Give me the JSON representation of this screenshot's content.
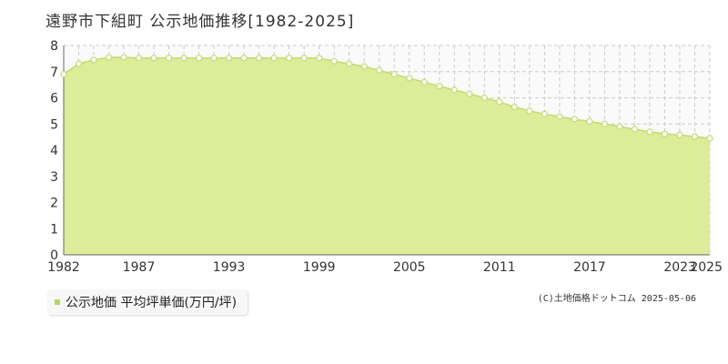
{
  "title": "遠野市下組町 公示地価推移[1982-2025]",
  "legend_label": "公示地価 平均坪単価(万円/坪)",
  "credit": "(C)土地価格ドットコム 2025-05-06",
  "colors": {
    "fill": "#dcec98",
    "line": "#c2dc6e",
    "marker_stroke": "#c2dc6e",
    "marker_fill": "#ffffff",
    "swatch": "#b6d85a",
    "grid": "#cccccc"
  },
  "chart_data": {
    "type": "area",
    "title": "遠野市下組町 公示地価推移[1982-2025]",
    "xlabel": "",
    "ylabel": "",
    "xlim": [
      1982,
      2025
    ],
    "ylim": [
      0,
      8
    ],
    "x_tick_labels": [
      "1982",
      "1987",
      "1993",
      "1999",
      "2005",
      "2011",
      "2017",
      "2023",
      "2025"
    ],
    "y_tick_labels": [
      "0",
      "1",
      "2",
      "3",
      "4",
      "5",
      "6",
      "7",
      "8"
    ],
    "grid": true,
    "legend": "bottom-left",
    "series": [
      {
        "name": "公示地価 平均坪単価(万円/坪)",
        "x": [
          1982,
          1983,
          1984,
          1985,
          1986,
          1987,
          1988,
          1989,
          1990,
          1991,
          1992,
          1993,
          1994,
          1995,
          1996,
          1997,
          1998,
          1999,
          2000,
          2001,
          2002,
          2003,
          2004,
          2005,
          2006,
          2007,
          2008,
          2009,
          2010,
          2011,
          2012,
          2013,
          2014,
          2015,
          2016,
          2017,
          2018,
          2019,
          2020,
          2021,
          2022,
          2023,
          2024,
          2025
        ],
        "values": [
          6.9,
          7.3,
          7.45,
          7.55,
          7.55,
          7.52,
          7.52,
          7.52,
          7.52,
          7.52,
          7.52,
          7.52,
          7.52,
          7.52,
          7.52,
          7.52,
          7.52,
          7.52,
          7.4,
          7.3,
          7.2,
          7.05,
          6.9,
          6.75,
          6.6,
          6.45,
          6.3,
          6.15,
          6.0,
          5.85,
          5.65,
          5.5,
          5.38,
          5.28,
          5.18,
          5.1,
          5.0,
          4.9,
          4.8,
          4.7,
          4.62,
          4.58,
          4.52,
          4.45
        ]
      }
    ]
  }
}
